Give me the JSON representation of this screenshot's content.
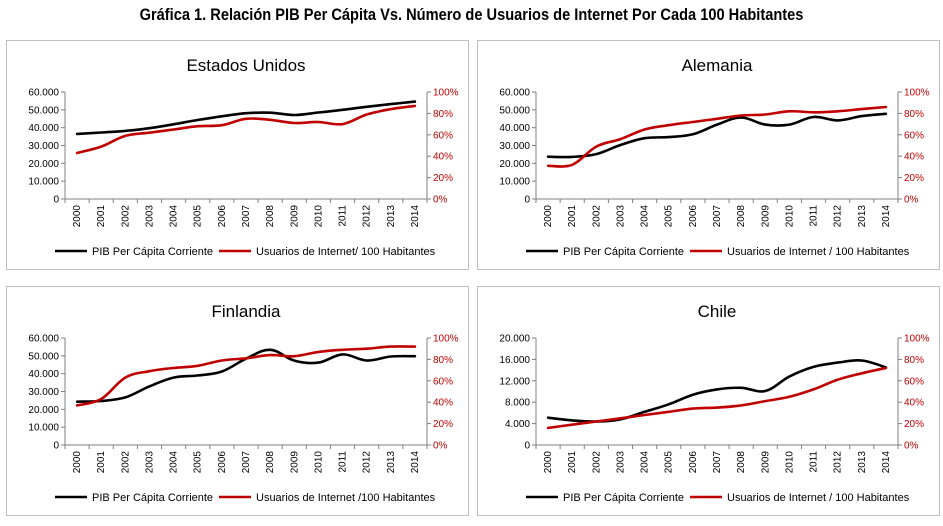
{
  "page_title": "Gráfica 1. Relación PIB Per Cápita Vs. Número de Usuarios de Internet Por Cada 100 Habitantes",
  "colors": {
    "gdp": "#000000",
    "internet": "#c00000",
    "axis": "#808080",
    "border": "#bfbfbf"
  },
  "chart_data": [
    {
      "type": "line",
      "title": "Estados Unidos",
      "categories": [
        "2000",
        "2001",
        "2002",
        "2003",
        "2004",
        "2005",
        "2006",
        "2007",
        "2008",
        "2009",
        "2010",
        "2011",
        "2012",
        "2013",
        "2014"
      ],
      "y_ticks": [
        "0",
        "10.000",
        "20.000",
        "30.000",
        "40.000",
        "50.000",
        "60.000"
      ],
      "y_range": [
        0,
        60000
      ],
      "y2_ticks": [
        "0%",
        "20%",
        "40%",
        "60%",
        "80%",
        "100%"
      ],
      "y2_range": [
        0,
        100
      ],
      "series": [
        {
          "name": "PIB Per Cápita Corriente",
          "axis": "left",
          "color": "#000000",
          "values": [
            36500,
            37300,
            38200,
            39700,
            41900,
            44300,
            46400,
            48100,
            48400,
            47100,
            48500,
            50000,
            51700,
            53200,
            54600
          ]
        },
        {
          "name": "Usuarios de Internet/ 100 Habitantes",
          "axis": "right",
          "color": "#c00000",
          "values": [
            43,
            49,
            59,
            62,
            65,
            68,
            69,
            75,
            74,
            71,
            72,
            70,
            79,
            84,
            87
          ]
        }
      ]
    },
    {
      "type": "line",
      "title": "Alemania",
      "categories": [
        "2000",
        "2001",
        "2002",
        "2003",
        "2004",
        "2005",
        "2006",
        "2007",
        "2008",
        "2009",
        "2010",
        "2011",
        "2012",
        "2013",
        "2014"
      ],
      "y_ticks": [
        "0",
        "10.000",
        "20.000",
        "30.000",
        "40.000",
        "50.000",
        "60.000"
      ],
      "y_range": [
        0,
        60000
      ],
      "y2_ticks": [
        "0%",
        "20%",
        "40%",
        "60%",
        "80%",
        "100%"
      ],
      "y2_range": [
        0,
        100
      ],
      "series": [
        {
          "name": "PIB Per Cápita Corriente",
          "axis": "left",
          "color": "#000000",
          "values": [
            23700,
            23600,
            25200,
            30300,
            34100,
            34700,
            36300,
            41700,
            45700,
            41700,
            41700,
            46000,
            44100,
            46500,
            47800
          ]
        },
        {
          "name": "Usuarios de Internet / 100 Habitantes",
          "axis": "right",
          "color": "#c00000",
          "values": [
            31,
            32,
            49,
            56,
            65,
            69,
            72,
            75,
            78,
            79,
            82,
            81,
            82,
            84,
            86
          ]
        }
      ]
    },
    {
      "type": "line",
      "title": "Finlandia",
      "categories": [
        "2000",
        "2001",
        "2002",
        "2003",
        "2004",
        "2005",
        "2006",
        "2007",
        "2008",
        "2009",
        "2010",
        "2011",
        "2012",
        "2013",
        "2014"
      ],
      "y_ticks": [
        "0",
        "10.000",
        "20.000",
        "30.000",
        "40.000",
        "50.000",
        "60.000"
      ],
      "y_range": [
        0,
        60000
      ],
      "y2_ticks": [
        "0%",
        "20%",
        "40%",
        "60%",
        "80%",
        "100%"
      ],
      "y2_range": [
        0,
        100
      ],
      "series": [
        {
          "name": "PIB Per Cápita Corriente",
          "axis": "left",
          "color": "#000000",
          "values": [
            24300,
            24700,
            26700,
            32900,
            37800,
            39000,
            41200,
            48400,
            53400,
            47300,
            46200,
            50800,
            47400,
            49600,
            49800
          ]
        },
        {
          "name": "Usuarios de Internet /100 Habitantes",
          "axis": "right",
          "color": "#c00000",
          "values": [
            37,
            43,
            63,
            69,
            72,
            74,
            79,
            81,
            84,
            83,
            87,
            89,
            90,
            92,
            92
          ]
        }
      ]
    },
    {
      "type": "line",
      "title": "Chile",
      "categories": [
        "2000",
        "2001",
        "2002",
        "2003",
        "2004",
        "2005",
        "2006",
        "2007",
        "2008",
        "2009",
        "2010",
        "2011",
        "2012",
        "2013",
        "2014"
      ],
      "y_ticks": [
        "0",
        "4.000",
        "8.000",
        "12.000",
        "16.000",
        "20.000"
      ],
      "y_range": [
        0,
        20000
      ],
      "y2_ticks": [
        "0%",
        "20%",
        "40%",
        "60%",
        "80%",
        "100%"
      ],
      "y2_range": [
        0,
        100
      ],
      "series": [
        {
          "name": "PIB Per Cápita Corriente",
          "axis": "left",
          "color": "#000000",
          "values": [
            5100,
            4600,
            4400,
            4800,
            6200,
            7600,
            9400,
            10400,
            10700,
            10100,
            12800,
            14600,
            15400,
            15800,
            14500
          ]
        },
        {
          "name": "Usuarios de Internet / 100 Habitantes",
          "axis": "right",
          "color": "#c00000",
          "values": [
            16,
            19,
            22,
            25,
            28,
            31,
            34,
            35,
            37,
            41,
            45,
            52,
            61,
            67,
            72
          ]
        }
      ]
    }
  ]
}
